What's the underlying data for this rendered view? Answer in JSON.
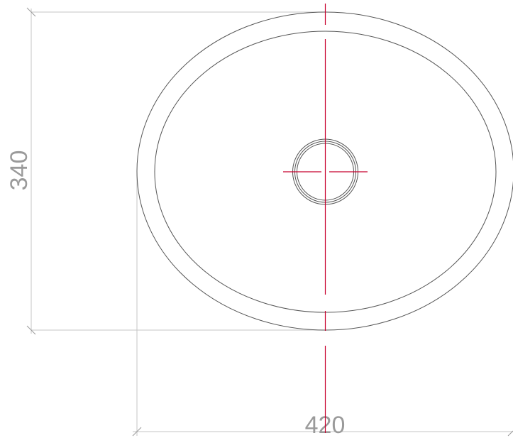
{
  "dimensions": {
    "height": "340",
    "width": "420"
  },
  "colors": {
    "outline": "#555555",
    "extension_line": "#c4c4c4",
    "dimension_text": "#9a9a9a",
    "center_line": "#c8002d",
    "background": "#ffffff"
  }
}
